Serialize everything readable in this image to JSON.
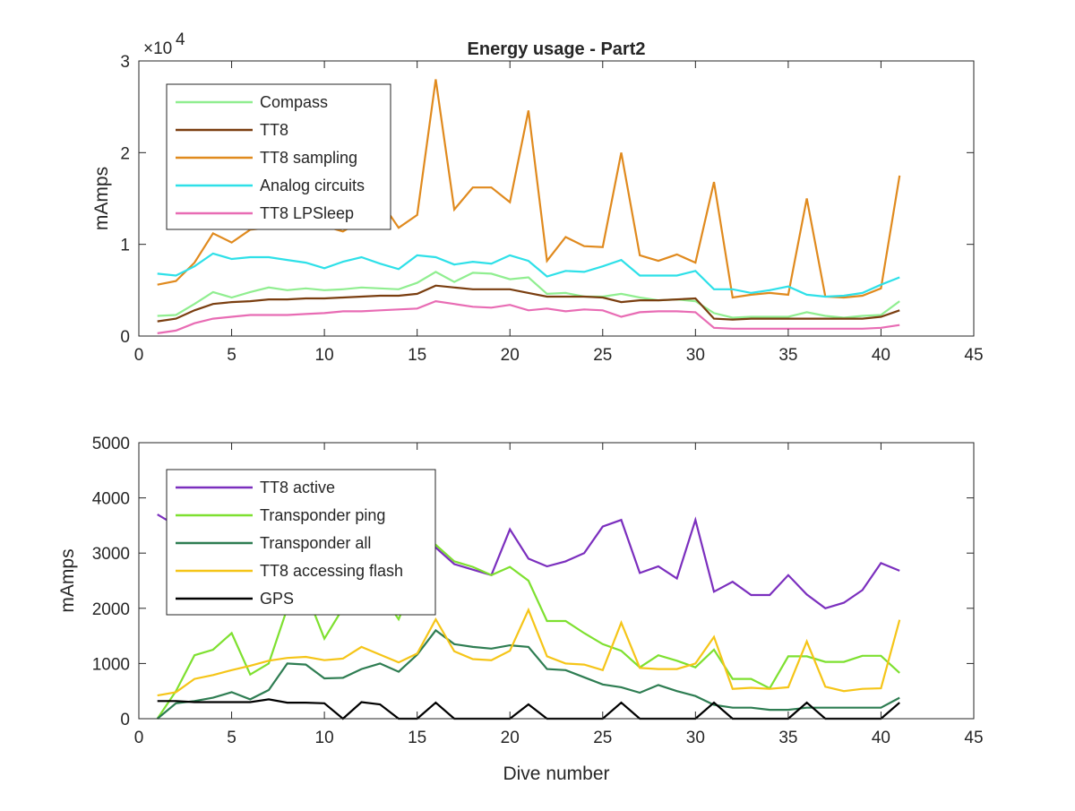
{
  "chart_data": [
    {
      "type": "line",
      "title": "Energy usage - Part2",
      "xlabel": "",
      "ylabel": "mAmps",
      "exponent_label": "×10",
      "exponent_power": "4",
      "xlim": [
        0,
        45
      ],
      "ylim": [
        0,
        30000
      ],
      "xticks": [
        0,
        5,
        10,
        15,
        20,
        25,
        30,
        35,
        40,
        45
      ],
      "yticks": [
        0,
        10000,
        20000,
        30000
      ],
      "ytick_labels": [
        "0",
        "1",
        "2",
        "3"
      ],
      "grid": false,
      "legend_position": "top-left",
      "x": [
        1,
        2,
        3,
        4,
        5,
        6,
        7,
        8,
        9,
        10,
        11,
        12,
        13,
        14,
        15,
        16,
        17,
        18,
        19,
        20,
        21,
        22,
        23,
        24,
        25,
        26,
        27,
        28,
        29,
        30,
        31,
        32,
        33,
        34,
        35,
        36,
        37,
        38,
        39,
        40,
        41
      ],
      "series": [
        {
          "name": "Compass",
          "color": "#90ee90",
          "values": [
            2200,
            2300,
            3500,
            4800,
            4200,
            4800,
            5300,
            5000,
            5200,
            5000,
            5100,
            5300,
            5200,
            5100,
            5800,
            7000,
            5900,
            6900,
            6800,
            6200,
            6400,
            4600,
            4700,
            4300,
            4300,
            4600,
            4200,
            3900,
            4000,
            3800,
            2500,
            2000,
            2100,
            2100,
            2100,
            2600,
            2200,
            2000,
            2200,
            2300,
            3800
          ]
        },
        {
          "name": "TT8",
          "color": "#7a3e10",
          "values": [
            1600,
            1900,
            2800,
            3500,
            3700,
            3800,
            4000,
            4000,
            4100,
            4100,
            4200,
            4300,
            4400,
            4400,
            4600,
            5500,
            5300,
            5100,
            5100,
            5100,
            4700,
            4300,
            4300,
            4300,
            4200,
            3700,
            3900,
            3900,
            4000,
            4100,
            1900,
            1800,
            1900,
            1900,
            1900,
            1900,
            1900,
            1900,
            1900,
            2100,
            2800
          ]
        },
        {
          "name": "TT8 sampling",
          "color": "#e08a1e",
          "values": [
            5600,
            6000,
            8000,
            11200,
            10200,
            11600,
            11800,
            11800,
            12000,
            12000,
            11400,
            12600,
            14800,
            11800,
            13200,
            28000,
            13800,
            16200,
            16200,
            14600,
            24600,
            8200,
            10800,
            9800,
            9700,
            20000,
            8800,
            8200,
            8900,
            8000,
            16800,
            4200,
            4500,
            4700,
            4500,
            15000,
            4300,
            4200,
            4400,
            5200,
            17500
          ]
        },
        {
          "name": "Analog circuits",
          "color": "#2ee0e8",
          "values": [
            6800,
            6600,
            7600,
            9000,
            8400,
            8600,
            8600,
            8300,
            8000,
            7400,
            8100,
            8600,
            7900,
            7300,
            8800,
            8600,
            7800,
            8100,
            7900,
            8800,
            8200,
            6500,
            7100,
            7000,
            7600,
            8300,
            6600,
            6600,
            6600,
            7100,
            5100,
            5100,
            4700,
            5000,
            5400,
            4500,
            4300,
            4400,
            4700,
            5600,
            6400
          ]
        },
        {
          "name": "TT8 LPSleep",
          "color": "#e86cb4",
          "values": [
            300,
            600,
            1400,
            1900,
            2100,
            2300,
            2300,
            2300,
            2400,
            2500,
            2700,
            2700,
            2800,
            2900,
            3000,
            3800,
            3500,
            3200,
            3100,
            3400,
            2800,
            3000,
            2700,
            2900,
            2800,
            2100,
            2600,
            2700,
            2700,
            2600,
            900,
            800,
            800,
            800,
            800,
            800,
            800,
            800,
            800,
            900,
            1200
          ]
        }
      ]
    },
    {
      "type": "line",
      "title": "",
      "xlabel": "Dive number",
      "ylabel": "mAmps",
      "xlim": [
        0,
        45
      ],
      "ylim": [
        0,
        5000
      ],
      "xticks": [
        0,
        5,
        10,
        15,
        20,
        25,
        30,
        35,
        40,
        45
      ],
      "yticks": [
        0,
        1000,
        2000,
        3000,
        4000,
        5000
      ],
      "ytick_labels": [
        "0",
        "1000",
        "2000",
        "3000",
        "4000",
        "5000"
      ],
      "grid": false,
      "legend_position": "top-left",
      "x": [
        1,
        2,
        3,
        4,
        5,
        6,
        7,
        8,
        9,
        10,
        11,
        12,
        13,
        14,
        15,
        16,
        17,
        18,
        19,
        20,
        21,
        22,
        23,
        24,
        25,
        26,
        27,
        28,
        29,
        30,
        31,
        32,
        33,
        34,
        35,
        36,
        37,
        38,
        39,
        40,
        41
      ],
      "series": [
        {
          "name": "TT8 active",
          "color": "#7b2fbe",
          "values": [
            3700,
            3500,
            3400,
            3300,
            3300,
            3300,
            3300,
            3300,
            3300,
            3300,
            3300,
            3300,
            3300,
            3300,
            3200,
            3100,
            2800,
            2700,
            2600,
            3430,
            2900,
            2760,
            2850,
            3000,
            3480,
            3600,
            2640,
            2760,
            2540,
            3600,
            2300,
            2480,
            2240,
            2240,
            2600,
            2250,
            2000,
            2100,
            2330,
            2820,
            2680
          ]
        },
        {
          "name": "Transponder ping",
          "color": "#7ee030",
          "values": [
            0,
            500,
            1150,
            1250,
            1550,
            800,
            1000,
            2000,
            2300,
            1450,
            2000,
            2400,
            2300,
            1800,
            2600,
            3150,
            2850,
            2750,
            2600,
            2750,
            2500,
            1770,
            1770,
            1550,
            1350,
            1230,
            930,
            1150,
            1050,
            930,
            1250,
            720,
            720,
            550,
            1130,
            1130,
            1030,
            1030,
            1140,
            1140,
            830
          ]
        },
        {
          "name": "Transponder all",
          "color": "#2e7d52",
          "values": [
            0,
            280,
            320,
            380,
            480,
            350,
            520,
            1000,
            980,
            730,
            740,
            900,
            1000,
            850,
            1160,
            1600,
            1350,
            1300,
            1270,
            1330,
            1300,
            900,
            880,
            750,
            620,
            570,
            470,
            610,
            500,
            410,
            250,
            200,
            200,
            160,
            160,
            200,
            200,
            200,
            200,
            200,
            380
          ]
        },
        {
          "name": "TT8 accessing flash",
          "color": "#f5c518",
          "values": [
            420,
            480,
            720,
            790,
            880,
            960,
            1050,
            1100,
            1120,
            1060,
            1090,
            1300,
            1160,
            1020,
            1180,
            1800,
            1220,
            1080,
            1060,
            1230,
            1970,
            1130,
            1000,
            980,
            880,
            1740,
            920,
            900,
            900,
            1000,
            1480,
            540,
            560,
            540,
            570,
            1400,
            580,
            500,
            540,
            550,
            1790
          ]
        },
        {
          "name": "GPS",
          "color": "#000000",
          "values": [
            320,
            320,
            300,
            300,
            300,
            300,
            350,
            290,
            290,
            280,
            0,
            300,
            260,
            0,
            0,
            290,
            0,
            0,
            0,
            0,
            260,
            0,
            0,
            0,
            0,
            290,
            0,
            0,
            0,
            0,
            290,
            0,
            0,
            0,
            0,
            290,
            0,
            0,
            0,
            0,
            290
          ]
        }
      ]
    }
  ]
}
